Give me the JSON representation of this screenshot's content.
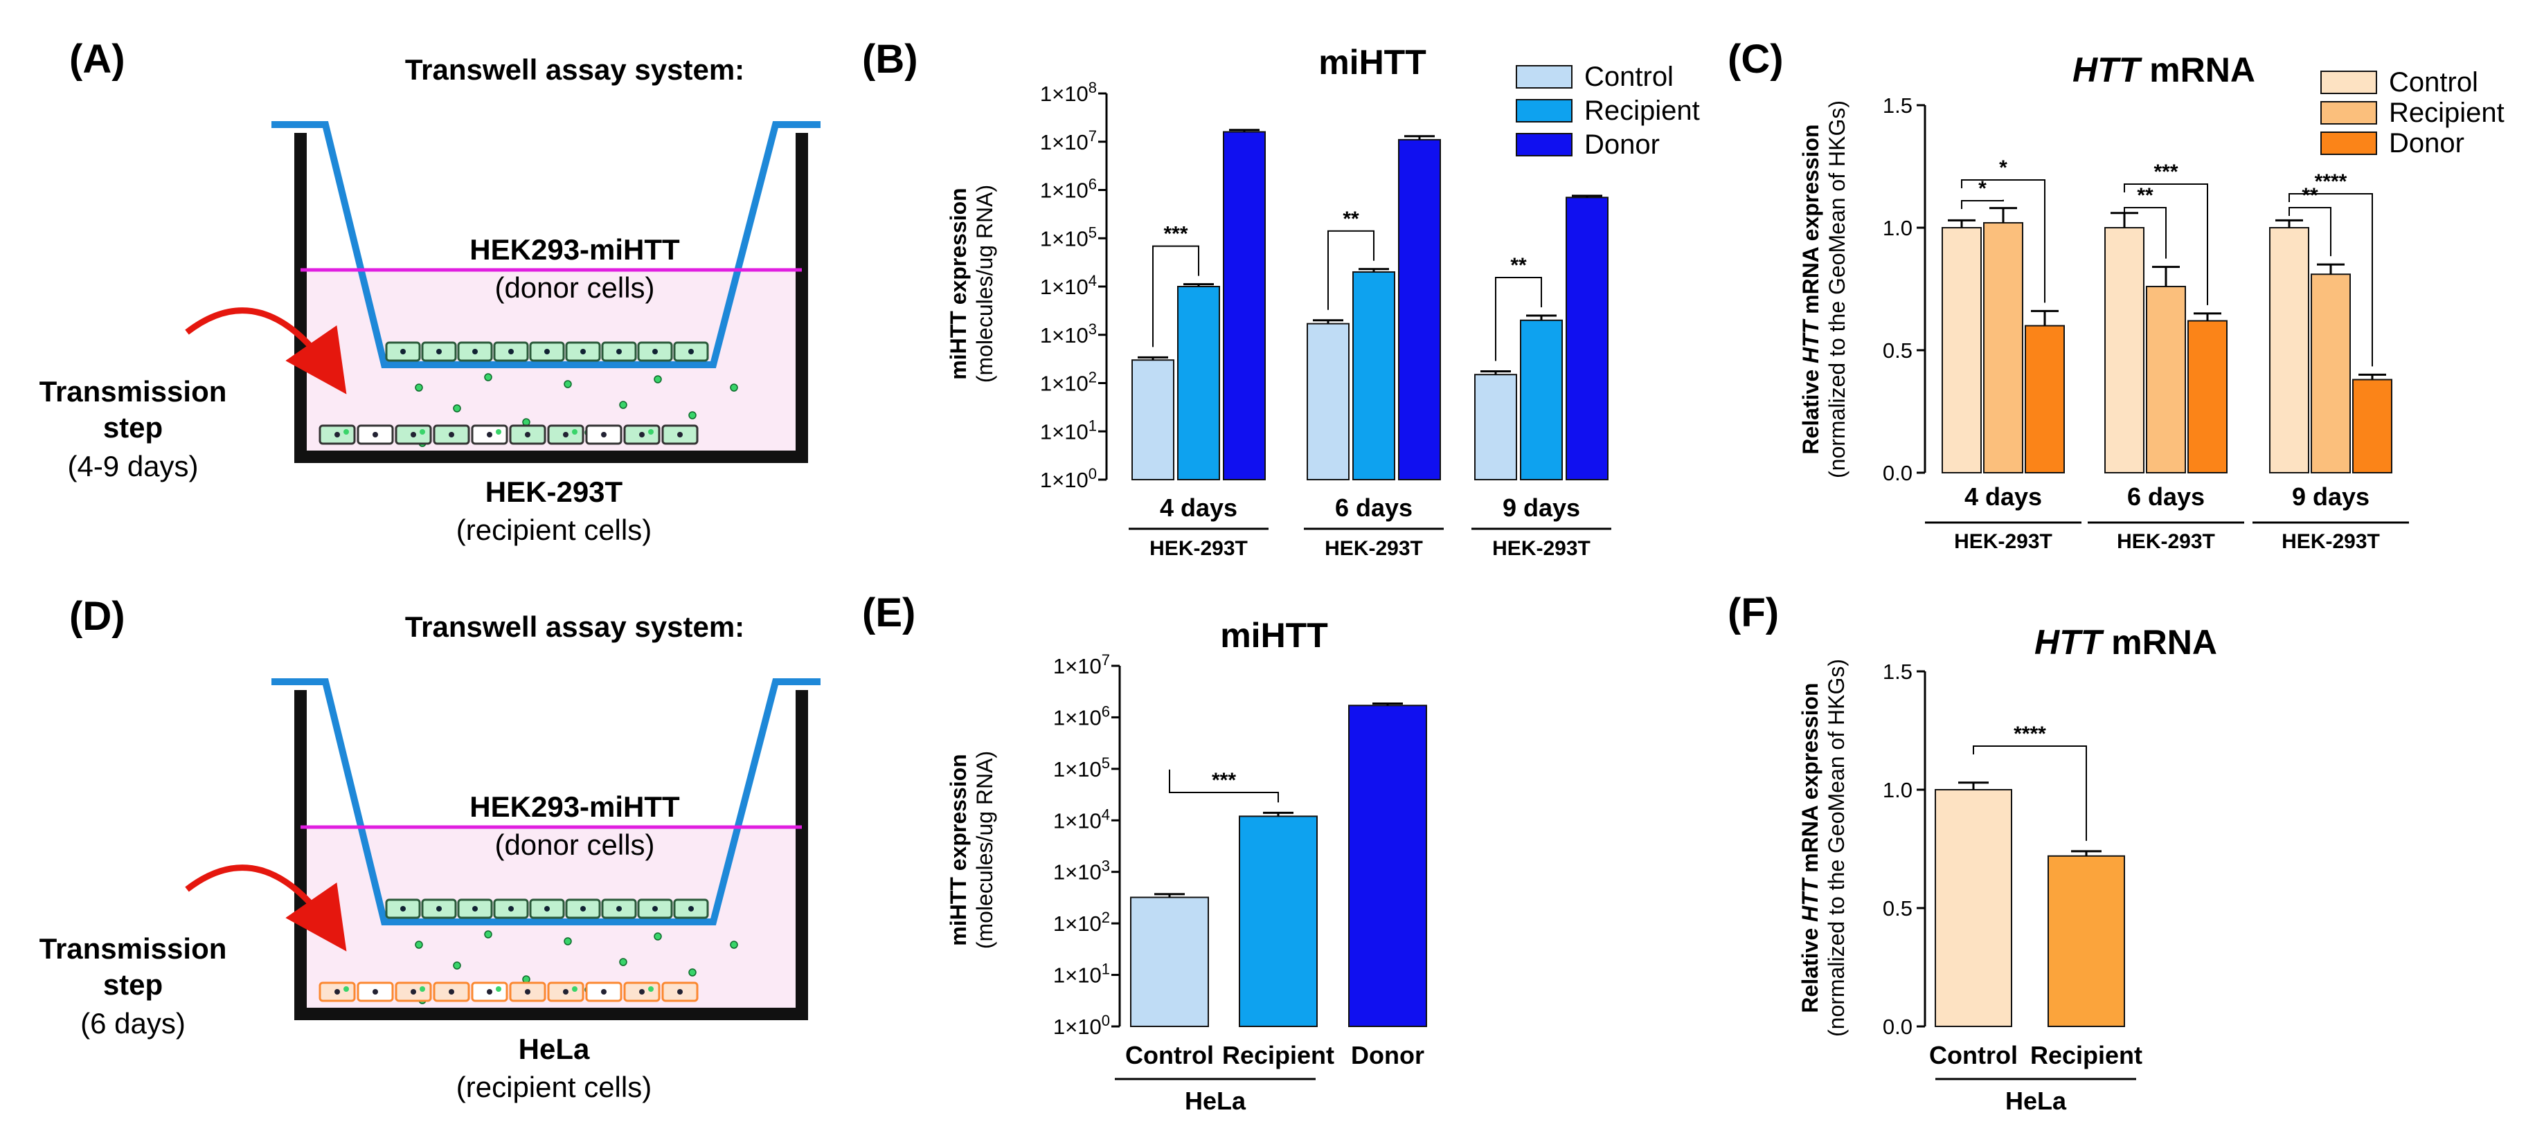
{
  "colors": {
    "control_blue": "#bfdcf5",
    "recipient_blue": "#0ea2ef",
    "donor_blue": "#1010f0",
    "control_orange": "#fde2c2",
    "recipient_orange": "#fbbf7c",
    "donor_orange": "#fb8418",
    "f_recipient_orange": "#fba43c",
    "insert_blue": "#1e88d8",
    "membrane_magenta": "#e01ee0",
    "medium_pink": "#fbeaf6",
    "arrow_red": "#e5170e",
    "cell_green": "#bff0cf",
    "cell_orange": "#fb8830"
  },
  "panels": {
    "a": {
      "label": "(A)",
      "title": "Transwell assay system:",
      "donor_name": "HEK293-miHTT",
      "donor_sub": "(donor cells)",
      "step_line1": "Transmission",
      "step_line2": "step",
      "step_days": "(4-9 days)",
      "recipient_name": "HEK-293T",
      "recipient_sub": "(recipient cells)"
    },
    "d": {
      "label": "(D)",
      "title": "Transwell assay system:",
      "donor_name": "HEK293-miHTT",
      "donor_sub": "(donor cells)",
      "step_line1": "Transmission",
      "step_line2": "step",
      "step_days": "(6 days)",
      "recipient_name": "HeLa",
      "recipient_sub": "(recipient cells)"
    }
  },
  "chart_data": [
    {
      "id": "B",
      "panel_label": "(B)",
      "type": "bar",
      "scale": "log10",
      "title": "miHTT",
      "ylabel_line1": "miHTT expression",
      "ylabel_line2": "(molecules/ug RNA)",
      "ylim": [
        1,
        100000000
      ],
      "yticks": [
        {
          "label": "1×10",
          "exp": "0"
        },
        {
          "label": "1×10",
          "exp": "1"
        },
        {
          "label": "1×10",
          "exp": "2"
        },
        {
          "label": "1×10",
          "exp": "3"
        },
        {
          "label": "1×10",
          "exp": "4"
        },
        {
          "label": "1×10",
          "exp": "5"
        },
        {
          "label": "1×10",
          "exp": "6"
        },
        {
          "label": "1×10",
          "exp": "7"
        },
        {
          "label": "1×10",
          "exp": "8"
        }
      ],
      "legend": {
        "placement": "top-right",
        "entries": [
          "Control",
          "Recipient",
          "Donor"
        ]
      },
      "groups": [
        {
          "label": "4 days",
          "sublabel": "HEK-293T"
        },
        {
          "label": "6 days",
          "sublabel": "HEK-293T"
        },
        {
          "label": "9 days",
          "sublabel": "HEK-293T"
        }
      ],
      "series": [
        {
          "name": "Control",
          "color": "#bfdcf5",
          "values": [
            300,
            1700,
            150
          ],
          "errors": [
            340,
            2000,
            175
          ]
        },
        {
          "name": "Recipient",
          "color": "#0ea2ef",
          "values": [
            10000,
            20000,
            2000
          ],
          "errors": [
            11200,
            23000,
            2500
          ]
        },
        {
          "name": "Donor",
          "color": "#1010f0",
          "values": [
            16000000,
            11000000,
            700000
          ],
          "errors": [
            17500000,
            13000000,
            760000
          ]
        }
      ],
      "significance": [
        {
          "group": 0,
          "from": 0,
          "to": 1,
          "label": "***"
        },
        {
          "group": 1,
          "from": 0,
          "to": 1,
          "label": "**"
        },
        {
          "group": 2,
          "from": 0,
          "to": 1,
          "label": "**"
        }
      ]
    },
    {
      "id": "C",
      "panel_label": "(C)",
      "type": "bar",
      "scale": "linear",
      "title_italic": "HTT",
      "title_rest": " mRNA",
      "ylabel_pre": "Relative ",
      "ylabel_italic": "HTT",
      "ylabel_post": " mRNA expression",
      "ylabel_line2": "(normalized to the GeoMean of HKGs)",
      "ylim": [
        0,
        1.5
      ],
      "yticks": [
        "0.0",
        "0.5",
        "1.0",
        "1.5"
      ],
      "legend": {
        "placement": "top-right",
        "entries": [
          "Control",
          "Recipient",
          "Donor"
        ]
      },
      "groups": [
        {
          "label": "4 days",
          "sublabel": "HEK-293T"
        },
        {
          "label": "6 days",
          "sublabel": "HEK-293T"
        },
        {
          "label": "9 days",
          "sublabel": "HEK-293T"
        }
      ],
      "series": [
        {
          "name": "Control",
          "color": "#fde2c2",
          "values": [
            1.0,
            1.0,
            1.0
          ],
          "errors": [
            0.03,
            0.06,
            0.03
          ]
        },
        {
          "name": "Recipient",
          "color": "#fbbf7c",
          "values": [
            1.02,
            0.76,
            0.81
          ],
          "errors": [
            0.06,
            0.08,
            0.04
          ]
        },
        {
          "name": "Donor",
          "color": "#fb8418",
          "values": [
            0.6,
            0.62,
            0.38
          ],
          "errors": [
            0.06,
            0.03,
            0.02
          ]
        }
      ],
      "significance": [
        {
          "group": 0,
          "from": 0,
          "to": 2,
          "label": "*",
          "level": 0
        },
        {
          "group": 0,
          "from": 0,
          "to": 1,
          "label": "*",
          "level": 1
        },
        {
          "group": 1,
          "from": 0,
          "to": 2,
          "label": "***",
          "level": 0
        },
        {
          "group": 1,
          "from": 0,
          "to": 1,
          "label": "**",
          "level": 1
        },
        {
          "group": 2,
          "from": 0,
          "to": 2,
          "label": "****",
          "level": 0
        },
        {
          "group": 2,
          "from": 0,
          "to": 1,
          "label": "**",
          "level": 1
        }
      ]
    },
    {
      "id": "E",
      "panel_label": "(E)",
      "type": "bar",
      "scale": "log10",
      "title": "miHTT",
      "ylabel_line1": "miHTT expression",
      "ylabel_line2": "(molecules/ug RNA)",
      "ylim": [
        1,
        10000000
      ],
      "yticks": [
        {
          "label": "1×10",
          "exp": "0"
        },
        {
          "label": "1×10",
          "exp": "1"
        },
        {
          "label": "1×10",
          "exp": "2"
        },
        {
          "label": "1×10",
          "exp": "3"
        },
        {
          "label": "1×10",
          "exp": "4"
        },
        {
          "label": "1×10",
          "exp": "5"
        },
        {
          "label": "1×10",
          "exp": "6"
        },
        {
          "label": "1×10",
          "exp": "7"
        }
      ],
      "categories": [
        "Control",
        "Recipient",
        "Donor"
      ],
      "group_label": "HeLa",
      "series": [
        {
          "name": "miHTT",
          "colors": [
            "#bfdcf5",
            "#0ea2ef",
            "#1010f0"
          ],
          "values": [
            320,
            12000,
            1700000
          ],
          "errors": [
            370,
            14000,
            1850000
          ]
        }
      ],
      "significance": [
        {
          "from": 0,
          "to": 1,
          "label": "***"
        }
      ]
    },
    {
      "id": "F",
      "panel_label": "(F)",
      "type": "bar",
      "scale": "linear",
      "title_italic": "HTT",
      "title_rest": " mRNA",
      "ylabel_pre": "Relative ",
      "ylabel_italic": "HTT",
      "ylabel_post": " mRNA expression",
      "ylabel_line2": "(normalized to the GeoMean of HKGs)",
      "ylim": [
        0,
        1.5
      ],
      "yticks": [
        "0.0",
        "0.5",
        "1.0",
        "1.5"
      ],
      "categories": [
        "Control",
        "Recipient"
      ],
      "group_label": "HeLa",
      "series": [
        {
          "name": "HTT mRNA",
          "colors": [
            "#fde2c2",
            "#fba43c"
          ],
          "values": [
            1.0,
            0.72
          ],
          "errors": [
            0.03,
            0.02
          ]
        }
      ],
      "significance": [
        {
          "from": 0,
          "to": 1,
          "label": "****"
        }
      ]
    }
  ]
}
